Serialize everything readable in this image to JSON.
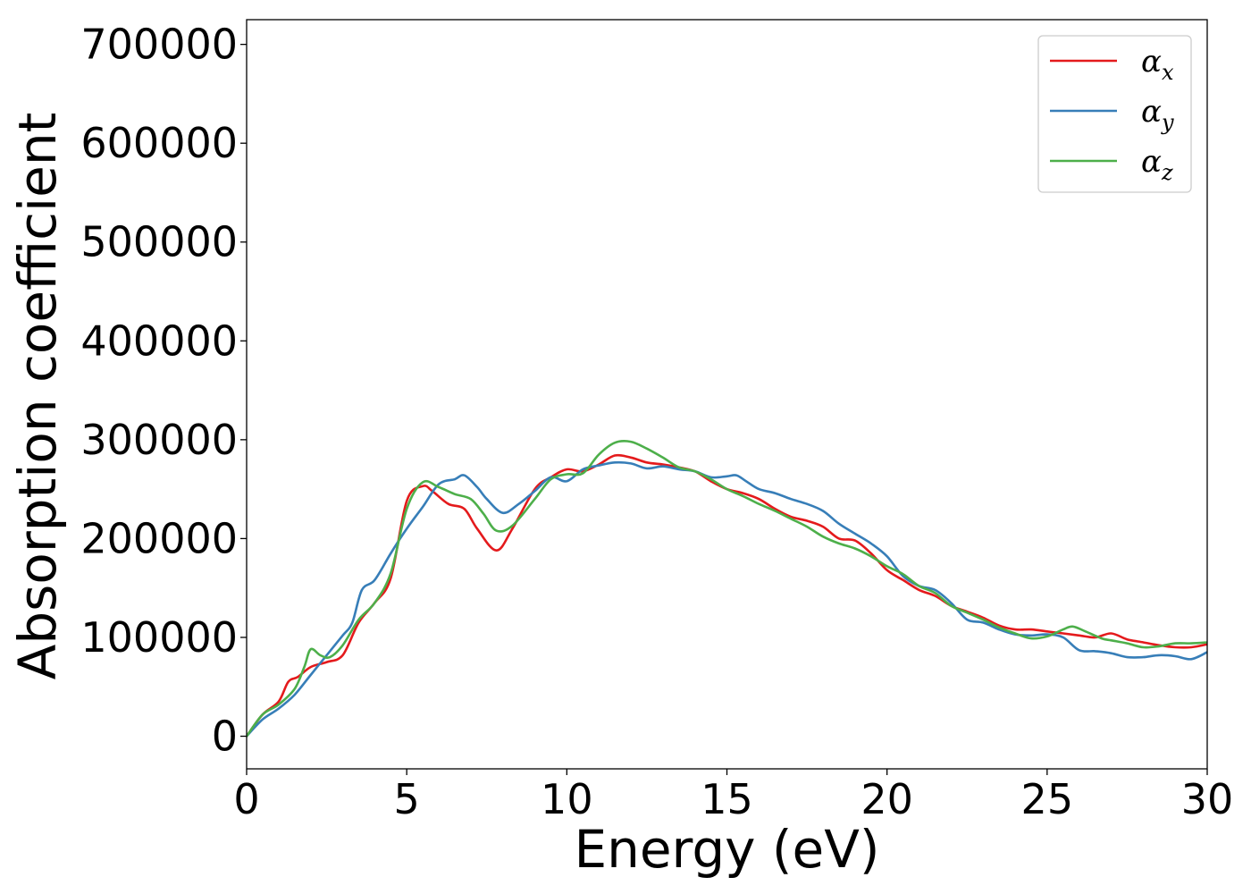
{
  "chart_data": {
    "type": "line",
    "title": "",
    "xlabel": "Energy (eV)",
    "ylabel": "Absorption coefficient",
    "xlim": [
      0,
      30
    ],
    "ylim": [
      -33000,
      725000
    ],
    "xticks": [
      0,
      5,
      10,
      15,
      20,
      25,
      30
    ],
    "xtick_labels": [
      "0",
      "5",
      "10",
      "15",
      "20",
      "25",
      "30"
    ],
    "yticks": [
      0,
      100000,
      200000,
      300000,
      400000,
      500000,
      600000,
      700000
    ],
    "ytick_labels": [
      "0",
      "100000",
      "200000",
      "300000",
      "400000",
      "500000",
      "600000",
      "700000"
    ],
    "grid": false,
    "legend_position": "top-right",
    "series": [
      {
        "name": "α",
        "subscript": "x",
        "color": "#e41a1c",
        "x": [
          0,
          0.5,
          1,
          1.3,
          1.6,
          2,
          2.5,
          3,
          3.5,
          4,
          4.5,
          5,
          5.5,
          5.8,
          6.3,
          6.8,
          7.2,
          7.8,
          8.3,
          9,
          9.5,
          10,
          10.5,
          11,
          11.5,
          12,
          12.5,
          13,
          13.5,
          14,
          14.5,
          15,
          15.5,
          16,
          16.5,
          17,
          17.5,
          18,
          18.5,
          19,
          19.5,
          20,
          20.5,
          21,
          21.5,
          22,
          22.5,
          23,
          23.5,
          24,
          24.5,
          25,
          25.5,
          26,
          26.5,
          27,
          27.5,
          28,
          28.5,
          29,
          29.5,
          30
        ],
        "y": [
          0,
          22000,
          35000,
          55000,
          60000,
          70000,
          75000,
          82000,
          115000,
          135000,
          160000,
          238000,
          253000,
          248000,
          235000,
          230000,
          210000,
          188000,
          210000,
          250000,
          262000,
          270000,
          268000,
          275000,
          284000,
          282000,
          277000,
          275000,
          272000,
          268000,
          258000,
          250000,
          246000,
          240000,
          230000,
          222000,
          218000,
          212000,
          200000,
          198000,
          185000,
          168000,
          158000,
          148000,
          142000,
          132000,
          126000,
          120000,
          112000,
          108000,
          108000,
          106000,
          104000,
          102000,
          100000,
          104000,
          98000,
          95000,
          92000,
          90000,
          90000,
          93000
        ]
      },
      {
        "name": "α",
        "subscript": "y",
        "color": "#377eb8",
        "x": [
          0,
          0.5,
          1,
          1.5,
          2,
          2.5,
          3,
          3.3,
          3.6,
          4,
          4.5,
          5,
          5.5,
          6,
          6.5,
          6.8,
          7.2,
          7.5,
          8,
          8.5,
          9,
          9.5,
          10,
          10.5,
          11,
          11.5,
          12,
          12.5,
          13,
          13.5,
          14,
          14.5,
          15,
          15.3,
          15.6,
          16,
          16.5,
          17,
          17.5,
          18,
          18.5,
          19,
          19.5,
          20,
          20.5,
          21,
          21.5,
          22,
          22.5,
          23,
          23.5,
          24,
          24.5,
          25,
          25.5,
          26,
          26.5,
          27,
          27.5,
          28,
          28.5,
          29,
          29.5,
          30
        ],
        "y": [
          0,
          17000,
          28000,
          42000,
          62000,
          82000,
          102000,
          115000,
          148000,
          158000,
          185000,
          210000,
          232000,
          255000,
          260000,
          264000,
          252000,
          240000,
          226000,
          235000,
          248000,
          262000,
          258000,
          270000,
          274000,
          277000,
          276000,
          271000,
          273000,
          270000,
          268000,
          262000,
          263000,
          264000,
          258000,
          250000,
          246000,
          240000,
          235000,
          228000,
          215000,
          205000,
          195000,
          182000,
          162000,
          152000,
          148000,
          135000,
          118000,
          115000,
          108000,
          103000,
          102000,
          103000,
          100000,
          87000,
          86000,
          84000,
          80000,
          80000,
          82000,
          81000,
          78000,
          85000
        ]
      },
      {
        "name": "α",
        "subscript": "z",
        "color": "#4daf4a",
        "x": [
          0,
          0.5,
          1,
          1.5,
          1.8,
          2,
          2.3,
          2.6,
          3,
          3.5,
          4,
          4.5,
          5,
          5.5,
          6,
          6.5,
          7,
          7.4,
          7.8,
          8.3,
          9,
          9.5,
          10,
          10.5,
          11,
          11.5,
          12,
          12.5,
          13,
          13.5,
          14,
          14.5,
          15,
          15.5,
          16,
          16.5,
          17,
          17.5,
          18,
          18.5,
          19,
          19.5,
          20,
          20.5,
          21,
          21.5,
          22,
          22.5,
          23,
          23.5,
          24,
          24.5,
          25,
          25.5,
          25.8,
          26.2,
          26.7,
          27,
          27.5,
          28,
          28.5,
          29,
          29.5,
          30
        ],
        "y": [
          0,
          22000,
          32000,
          48000,
          70000,
          88000,
          82000,
          80000,
          92000,
          118000,
          135000,
          165000,
          230000,
          257000,
          252000,
          245000,
          240000,
          225000,
          208000,
          213000,
          240000,
          260000,
          265000,
          266000,
          285000,
          297000,
          298000,
          291000,
          282000,
          272000,
          268000,
          260000,
          250000,
          243000,
          235000,
          228000,
          220000,
          212000,
          202000,
          195000,
          190000,
          182000,
          172000,
          164000,
          152000,
          145000,
          132000,
          125000,
          118000,
          110000,
          104000,
          99000,
          101000,
          108000,
          111000,
          106000,
          99000,
          97000,
          94000,
          90000,
          91000,
          94000,
          94000,
          95000
        ]
      }
    ]
  }
}
